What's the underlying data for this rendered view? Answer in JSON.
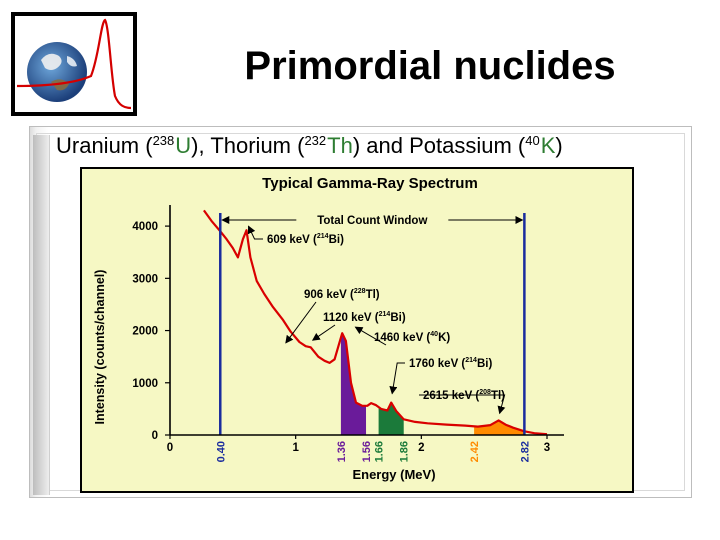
{
  "slide": {
    "title": "Primordial nuclides",
    "subtitle": {
      "t1": "Uranium (",
      "u_mass": "238",
      "u_sym": "U",
      "t2": "), Thorium (",
      "th_mass": "232",
      "th_sym": "Th",
      "t3": ") and Potassium (",
      "k_mass": "40",
      "k_sym": "K",
      "t4": ")"
    },
    "logo_icon": "earth-with-spectrum-logo",
    "colors": {
      "accent": "#2e7d32",
      "panel": "#f6f8c4",
      "curve": "#d90000",
      "window": "#1a2c9e"
    }
  },
  "chart_data": {
    "type": "line",
    "title": "Typical Gamma-Ray Spectrum",
    "xlabel": "Energy (MeV)",
    "ylabel": "Intensity (counts/channel)",
    "xlim": [
      0,
      3
    ],
    "ylim": [
      0,
      4500
    ],
    "x_ticks": [
      "0",
      "1",
      "2",
      "3"
    ],
    "y_ticks": [
      "0",
      "1000",
      "2000",
      "3000",
      "4000"
    ],
    "window": {
      "label": "Total Count Window",
      "start": 0.4,
      "end": 2.82
    },
    "window_labels": [
      "0.40",
      "2.82"
    ],
    "series": [
      {
        "points": [
          [
            0.27,
            4300
          ],
          [
            0.33,
            4100
          ],
          [
            0.4,
            3900
          ],
          [
            0.45,
            3750
          ],
          [
            0.5,
            3580
          ],
          [
            0.54,
            3400
          ],
          [
            0.58,
            3750
          ],
          [
            0.609,
            3920
          ],
          [
            0.64,
            3400
          ],
          [
            0.69,
            2950
          ],
          [
            0.75,
            2700
          ],
          [
            0.82,
            2450
          ],
          [
            0.9,
            2200
          ],
          [
            0.96,
            1980
          ],
          [
            1.03,
            1780
          ],
          [
            1.08,
            1700
          ],
          [
            1.12,
            1680
          ],
          [
            1.18,
            1500
          ],
          [
            1.23,
            1420
          ],
          [
            1.27,
            1380
          ],
          [
            1.31,
            1450
          ],
          [
            1.34,
            1700
          ],
          [
            1.37,
            1950
          ],
          [
            1.4,
            1800
          ],
          [
            1.44,
            1000
          ],
          [
            1.48,
            620
          ],
          [
            1.53,
            560
          ],
          [
            1.57,
            560
          ],
          [
            1.6,
            610
          ],
          [
            1.64,
            570
          ],
          [
            1.68,
            500
          ],
          [
            1.73,
            470
          ],
          [
            1.76,
            620
          ],
          [
            1.8,
            460
          ],
          [
            1.86,
            300
          ],
          [
            1.95,
            250
          ],
          [
            2.05,
            225
          ],
          [
            2.2,
            200
          ],
          [
            2.35,
            180
          ],
          [
            2.45,
            160
          ],
          [
            2.55,
            190
          ],
          [
            2.615,
            280
          ],
          [
            2.67,
            200
          ],
          [
            2.73,
            140
          ],
          [
            2.82,
            70
          ],
          [
            2.9,
            35
          ],
          [
            3.0,
            15
          ]
        ]
      }
    ],
    "bands": [
      {
        "label": "1.36",
        "start": 1.36,
        "end": 1.56,
        "color": "#6a1b9a"
      },
      {
        "label": "1.66",
        "start": 1.66,
        "end": 1.86,
        "color": "#1b7a3a"
      },
      {
        "label": "2.42",
        "start": 2.42,
        "end": 2.82,
        "color": "#ff8a00"
      }
    ],
    "band_labels": [
      "1.36",
      "1.56",
      "1.66",
      "1.86",
      "2.42",
      "2.82"
    ],
    "annotations": [
      {
        "text": "609 keV (",
        "iso": "214",
        "nuc": "Bi)",
        "x": 0.609,
        "y": 3920
      },
      {
        "text": "906 keV (",
        "iso": "228",
        "nuc": "Tl)",
        "x": 0.906,
        "y": 1650
      },
      {
        "text": "1120 keV (",
        "iso": "214",
        "nuc": "Bi)",
        "x": 1.12,
        "y": 1700
      },
      {
        "text": "1460 keV (",
        "iso": "40",
        "nuc": "K)",
        "x": 1.46,
        "y": 1950
      },
      {
        "text": "1760 keV (",
        "iso": "214",
        "nuc": "Bi)",
        "x": 1.76,
        "y": 680
      },
      {
        "text": "2615 keV (",
        "iso": "208",
        "nuc": "Tl)",
        "x": 2.615,
        "y": 300
      }
    ]
  }
}
